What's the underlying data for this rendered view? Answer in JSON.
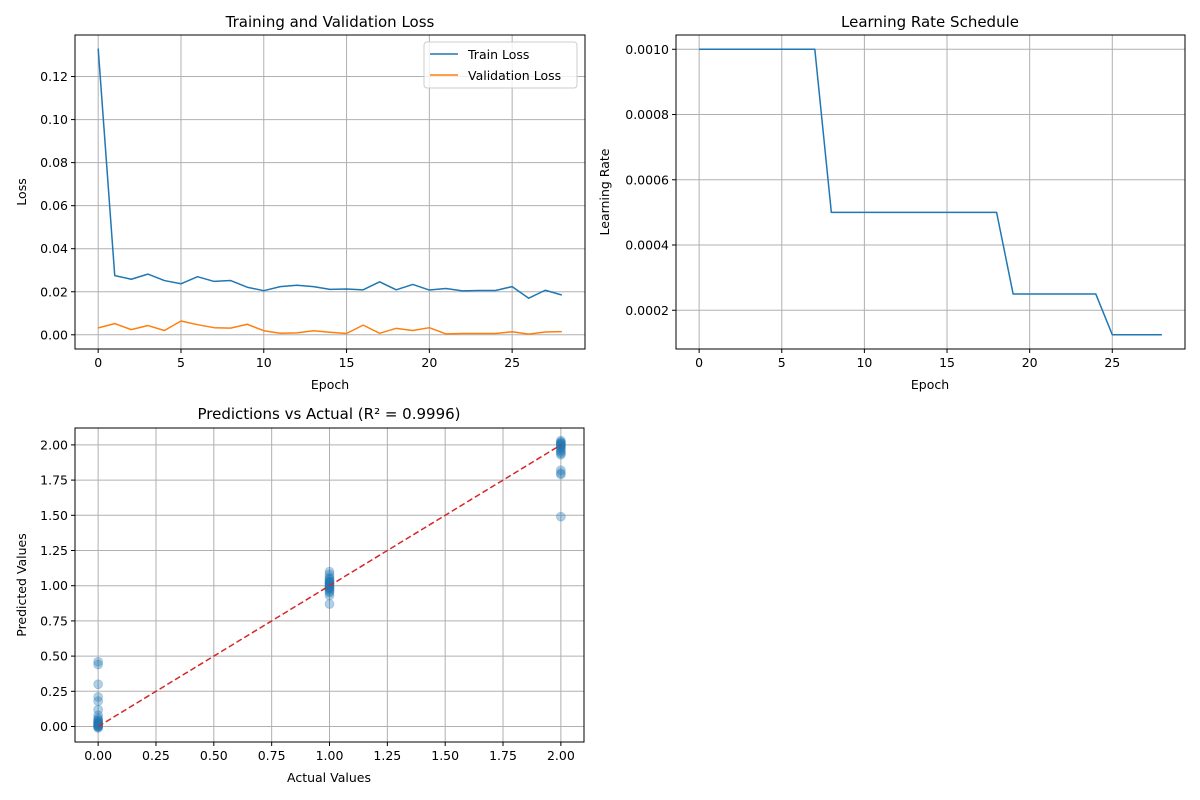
{
  "colors": {
    "blue": "#1f77b4",
    "orange": "#ff7f0e",
    "red": "#d62728",
    "grid": "#b0b0b0",
    "frame": "#000000"
  },
  "chart_data": [
    {
      "id": "loss",
      "type": "line",
      "title": "Training and Validation Loss",
      "xlabel": "Epoch",
      "ylabel": "Loss",
      "xlim": [
        -1.4,
        29.4
      ],
      "ylim": [
        -0.0066,
        0.1393
      ],
      "xticks": [
        0,
        5,
        10,
        15,
        20,
        25
      ],
      "xtick_labels": [
        "0",
        "5",
        "10",
        "15",
        "20",
        "25"
      ],
      "yticks": [
        0,
        0.02,
        0.04,
        0.06,
        0.08,
        0.1,
        0.12
      ],
      "ytick_labels": [
        "0.00",
        "0.02",
        "0.04",
        "0.06",
        "0.08",
        "0.10",
        "0.12"
      ],
      "grid": true,
      "legend": "top-right",
      "x": [
        0,
        1,
        2,
        3,
        4,
        5,
        6,
        7,
        8,
        9,
        10,
        11,
        12,
        13,
        14,
        15,
        16,
        17,
        18,
        19,
        20,
        21,
        22,
        23,
        24,
        25,
        26,
        27,
        28
      ],
      "series": [
        {
          "name": "Train Loss",
          "color": "#1f77b4",
          "values": [
            0.133,
            0.0275,
            0.0258,
            0.0282,
            0.0252,
            0.0237,
            0.027,
            0.0248,
            0.0252,
            0.0221,
            0.0205,
            0.0224,
            0.023,
            0.0224,
            0.0211,
            0.0213,
            0.0209,
            0.0246,
            0.0209,
            0.0234,
            0.0208,
            0.0215,
            0.0204,
            0.0206,
            0.0206,
            0.0224,
            0.017,
            0.0207,
            0.0185
          ]
        },
        {
          "name": "Validation Loss",
          "color": "#ff7f0e",
          "values": [
            0.0032,
            0.0052,
            0.0024,
            0.0043,
            0.002,
            0.0064,
            0.0047,
            0.0033,
            0.0031,
            0.0049,
            0.0019,
            0.0007,
            0.0009,
            0.0019,
            0.0012,
            0.0006,
            0.0045,
            0.0007,
            0.003,
            0.002,
            0.0033,
            0.0004,
            0.0006,
            0.0006,
            0.0006,
            0.0014,
            0.0003,
            0.0013,
            0.0015
          ]
        }
      ]
    },
    {
      "id": "lr",
      "type": "line",
      "title": "Learning Rate Schedule",
      "xlabel": "Epoch",
      "ylabel": "Learning Rate",
      "xlim": [
        -1.4,
        29.4
      ],
      "ylim": [
        8.125e-05,
        0.00104375
      ],
      "xticks": [
        0,
        5,
        10,
        15,
        20,
        25
      ],
      "xtick_labels": [
        "0",
        "5",
        "10",
        "15",
        "20",
        "25"
      ],
      "yticks": [
        0.0002,
        0.0004,
        0.0006,
        0.0008,
        0.001
      ],
      "ytick_labels": [
        "0.0002",
        "0.0004",
        "0.0006",
        "0.0008",
        "0.0010"
      ],
      "grid": true,
      "x": [
        0,
        1,
        2,
        3,
        4,
        5,
        6,
        7,
        8,
        9,
        10,
        11,
        12,
        13,
        14,
        15,
        16,
        17,
        18,
        19,
        20,
        21,
        22,
        23,
        24,
        25,
        26,
        27,
        28
      ],
      "series": [
        {
          "color": "#1f77b4",
          "values": [
            0.001,
            0.001,
            0.001,
            0.001,
            0.001,
            0.001,
            0.001,
            0.001,
            0.0005,
            0.0005,
            0.0005,
            0.0005,
            0.0005,
            0.0005,
            0.0005,
            0.0005,
            0.0005,
            0.0005,
            0.0005,
            0.00025,
            0.00025,
            0.00025,
            0.00025,
            0.00025,
            0.00025,
            0.000125,
            0.000125,
            0.000125,
            0.000125
          ]
        }
      ]
    },
    {
      "id": "pred",
      "type": "scatter",
      "title": "Predictions vs Actual (R² = 0.9996)",
      "xlabel": "Actual Values",
      "ylabel": "Predicted Values",
      "xlim": [
        -0.1,
        2.1
      ],
      "ylim": [
        -0.11,
        2.12
      ],
      "xticks": [
        0,
        0.25,
        0.5,
        0.75,
        1.0,
        1.25,
        1.5,
        1.75,
        2.0
      ],
      "xtick_labels": [
        "0.00",
        "0.25",
        "0.50",
        "0.75",
        "1.00",
        "1.25",
        "1.50",
        "1.75",
        "2.00"
      ],
      "yticks": [
        0,
        0.25,
        0.5,
        0.75,
        1.0,
        1.25,
        1.5,
        1.75,
        2.0
      ],
      "ytick_labels": [
        "0.00",
        "0.25",
        "0.50",
        "0.75",
        "1.00",
        "1.25",
        "1.50",
        "1.75",
        "2.00"
      ],
      "grid": true,
      "points": {
        "color": "#1f77b4",
        "opacity": 0.35,
        "x": [
          0,
          0,
          0,
          0,
          0,
          0,
          0,
          0,
          0,
          0,
          0,
          0,
          0,
          0,
          0,
          0,
          0,
          0,
          0,
          0,
          0,
          0,
          1,
          1,
          1,
          1,
          1,
          1,
          1,
          1,
          1,
          1,
          1,
          1,
          1,
          1,
          1,
          1,
          1,
          1,
          1,
          1,
          2,
          2,
          2,
          2,
          2,
          2,
          2,
          2,
          2,
          2,
          2,
          2,
          2,
          2,
          2,
          2,
          2,
          2
        ],
        "y": [
          0.46,
          0.44,
          0.3,
          0.21,
          0.18,
          0.12,
          0.08,
          0.06,
          0.05,
          0.04,
          0.03,
          0.025,
          0.02,
          0.015,
          0.01,
          0.005,
          0.0,
          -0.005,
          -0.01,
          0.035,
          0.012,
          0.002,
          1.1,
          1.08,
          1.06,
          1.05,
          1.04,
          1.03,
          1.02,
          1.01,
          1.0,
          0.99,
          0.98,
          0.97,
          0.96,
          0.95,
          0.93,
          0.87,
          1.015,
          0.995,
          0.985,
          1.025,
          2.03,
          2.02,
          2.01,
          2.0,
          1.99,
          1.98,
          1.97,
          1.96,
          1.95,
          1.94,
          1.93,
          1.82,
          1.8,
          1.79,
          1.49,
          2.015,
          1.995,
          2.005
        ]
      },
      "reference_line": {
        "color": "#d62728",
        "x": [
          0,
          2
        ],
        "y": [
          0,
          2
        ]
      }
    }
  ]
}
